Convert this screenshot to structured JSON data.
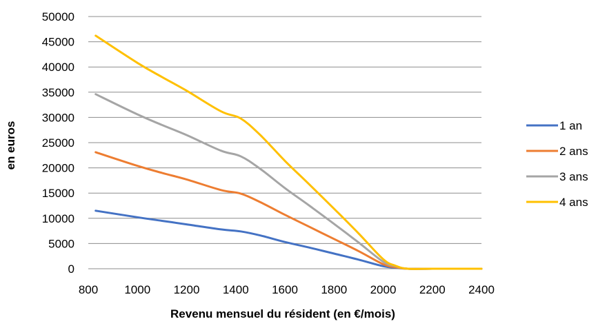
{
  "chart_data": {
    "type": "line",
    "xlabel": "Revenu mensuel du résident (en €/mois)",
    "ylabel": "en euros",
    "xlim": [
      800,
      2400
    ],
    "ylim": [
      0,
      50000
    ],
    "x_ticks": [
      "800",
      "1000",
      "1200",
      "1400",
      "1600",
      "1800",
      "2000",
      "2200",
      "2400"
    ],
    "y_ticks": [
      "0",
      "5000",
      "10000",
      "15000",
      "20000",
      "25000",
      "30000",
      "35000",
      "40000",
      "45000",
      "50000"
    ],
    "grid": true,
    "legend_position": "right",
    "x": [
      830,
      1000,
      1100,
      1200,
      1340,
      1420,
      1500,
      1600,
      1700,
      1800,
      1900,
      2000,
      2050,
      2100,
      2200,
      2300,
      2400
    ],
    "series": [
      {
        "name": "1 an",
        "color": "#4472c4",
        "values": [
          11500,
          10200,
          9500,
          8800,
          7800,
          7400,
          6600,
          5300,
          4200,
          3000,
          1800,
          500,
          200,
          0,
          0,
          0,
          0
        ]
      },
      {
        "name": "2 ans",
        "color": "#ed7d31",
        "values": [
          23100,
          20400,
          19000,
          17700,
          15600,
          14900,
          13200,
          10700,
          8300,
          5900,
          3500,
          900,
          300,
          0,
          0,
          0,
          0
        ]
      },
      {
        "name": "3 ans",
        "color": "#a5a5a5",
        "values": [
          34600,
          30600,
          28500,
          26500,
          23400,
          22300,
          19800,
          16000,
          12500,
          8900,
          5200,
          1400,
          500,
          0,
          0,
          0,
          0
        ]
      },
      {
        "name": "4 ans",
        "color": "#ffc000",
        "values": [
          46200,
          40800,
          38000,
          35300,
          31200,
          29800,
          26500,
          21400,
          16700,
          11900,
          7000,
          1900,
          600,
          0,
          0,
          0,
          0
        ]
      }
    ]
  }
}
